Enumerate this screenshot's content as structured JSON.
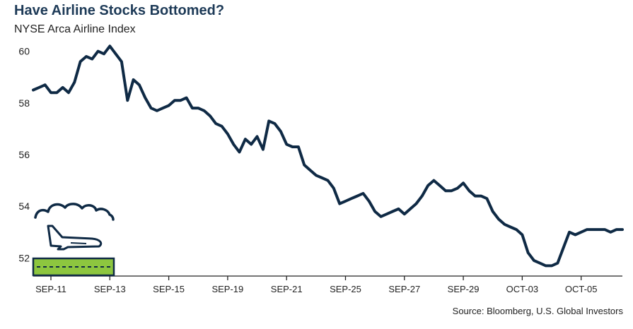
{
  "title": "Have Airline Stocks Bottomed?",
  "subtitle": "NYSE Arca Airline Index",
  "source": "Source: Bloomberg, U.S. Global Investors",
  "colors": {
    "title": "#1d3a57",
    "line": "#0f2a45",
    "runway": "#8dc63f",
    "runway_edge": "#0f2a45"
  },
  "icons": [
    "cloud-icon",
    "airplane-icon",
    "runway-icon"
  ],
  "chart_data": {
    "type": "line",
    "title": "Have Airline Stocks Bottomed?",
    "subtitle": "NYSE Arca Airline Index",
    "xlabel": "",
    "ylabel": "",
    "ylim": [
      51.3,
      60.4
    ],
    "yticks": [
      52,
      54,
      56,
      58,
      60
    ],
    "xticks": [
      "SEP-11",
      "SEP-13",
      "SEP-15",
      "SEP-19",
      "SEP-21",
      "SEP-25",
      "SEP-27",
      "SEP-29",
      "OCT-03",
      "OCT-05"
    ],
    "grid": false,
    "x_index_range": [
      0,
      100
    ],
    "xtick_index": [
      3,
      13,
      23,
      33,
      43,
      53,
      63,
      73,
      83,
      93
    ],
    "series": [
      {
        "x": [
          0,
          1,
          2,
          3,
          4,
          5,
          6,
          7,
          8,
          9,
          10,
          11,
          12,
          13,
          14,
          15,
          16,
          17,
          18,
          19,
          20,
          21,
          22,
          23,
          24,
          25,
          26,
          27,
          28,
          29,
          30,
          31,
          32,
          33,
          34,
          35,
          36,
          37,
          38,
          39,
          40,
          41,
          42,
          43,
          44,
          45,
          46,
          47,
          48,
          49,
          50,
          51,
          52,
          53,
          54,
          55,
          56,
          57,
          58,
          59,
          60,
          61,
          62,
          63,
          64,
          65,
          66,
          67,
          68,
          69,
          70,
          71,
          72,
          73,
          74,
          75,
          76,
          77,
          78,
          79,
          80,
          81,
          82,
          83,
          84,
          85,
          86,
          87,
          88,
          89,
          90,
          91,
          92,
          93,
          94,
          95,
          96,
          97,
          98,
          99,
          100
        ],
        "values": [
          58.5,
          58.6,
          58.7,
          58.4,
          58.4,
          58.6,
          58.4,
          58.8,
          59.6,
          59.8,
          59.7,
          60.0,
          59.9,
          60.2,
          59.9,
          59.6,
          58.1,
          58.9,
          58.7,
          58.2,
          57.8,
          57.7,
          57.8,
          57.9,
          58.1,
          58.1,
          58.2,
          57.8,
          57.8,
          57.7,
          57.5,
          57.2,
          57.1,
          56.8,
          56.4,
          56.1,
          56.6,
          56.4,
          56.7,
          56.2,
          57.3,
          57.2,
          56.9,
          56.4,
          56.3,
          56.3,
          55.6,
          55.4,
          55.2,
          55.1,
          55.0,
          54.7,
          54.1,
          54.2,
          54.3,
          54.4,
          54.5,
          54.2,
          53.8,
          53.6,
          53.7,
          53.8,
          53.9,
          53.7,
          53.9,
          54.1,
          54.4,
          54.8,
          55.0,
          54.8,
          54.6,
          54.6,
          54.7,
          54.9,
          54.6,
          54.4,
          54.4,
          54.3,
          53.8,
          53.5,
          53.3,
          53.2,
          53.1,
          52.9,
          52.2,
          51.9,
          51.8,
          51.7,
          51.7,
          51.8,
          52.4,
          53.0,
          52.9,
          53.0,
          53.1,
          53.1,
          53.1,
          53.1,
          53.0,
          53.1,
          53.1
        ]
      }
    ]
  }
}
